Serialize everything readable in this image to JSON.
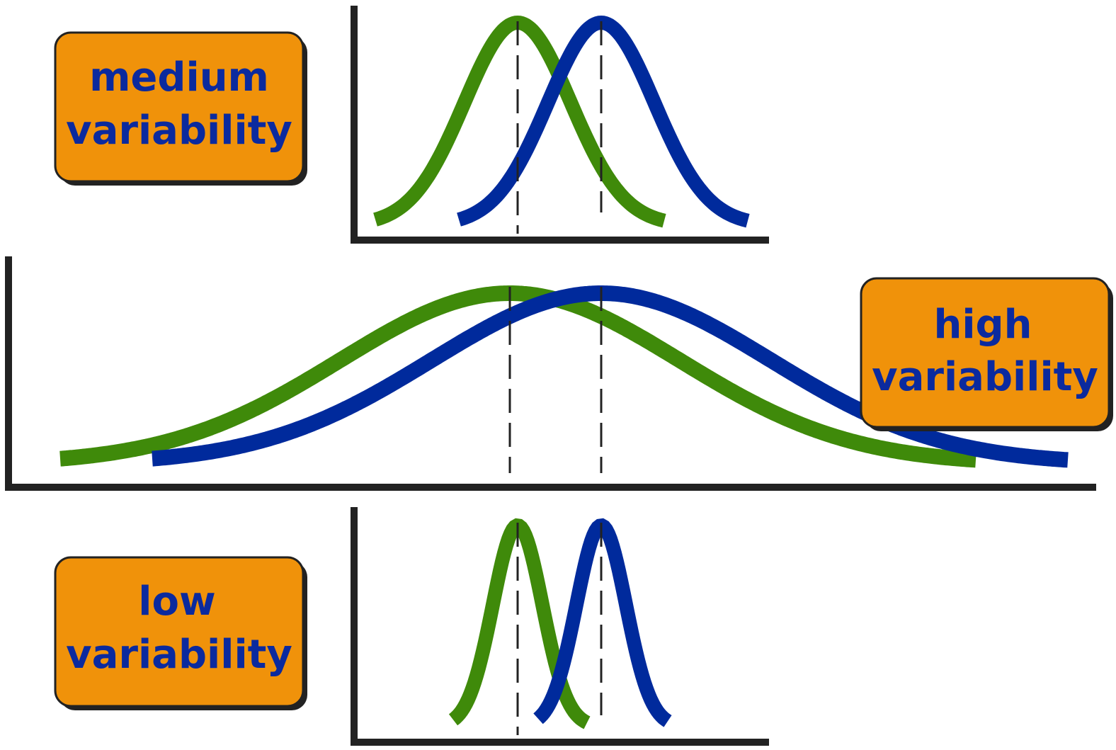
{
  "colors": {
    "background": "#ffffff",
    "axis": "#222222",
    "green_curve": "#3f8a0a",
    "blue_curve": "#002a9c",
    "label_fill": "#f0920a",
    "label_border": "#222222",
    "label_text": "#0b2a9e",
    "mean_line": "#222222"
  },
  "panels": [
    {
      "id": "medium",
      "label_lines": [
        "medium",
        "variability"
      ]
    },
    {
      "id": "high",
      "label_lines": [
        "high",
        "variability"
      ]
    },
    {
      "id": "low",
      "label_lines": [
        "low",
        "variability"
      ]
    }
  ]
}
